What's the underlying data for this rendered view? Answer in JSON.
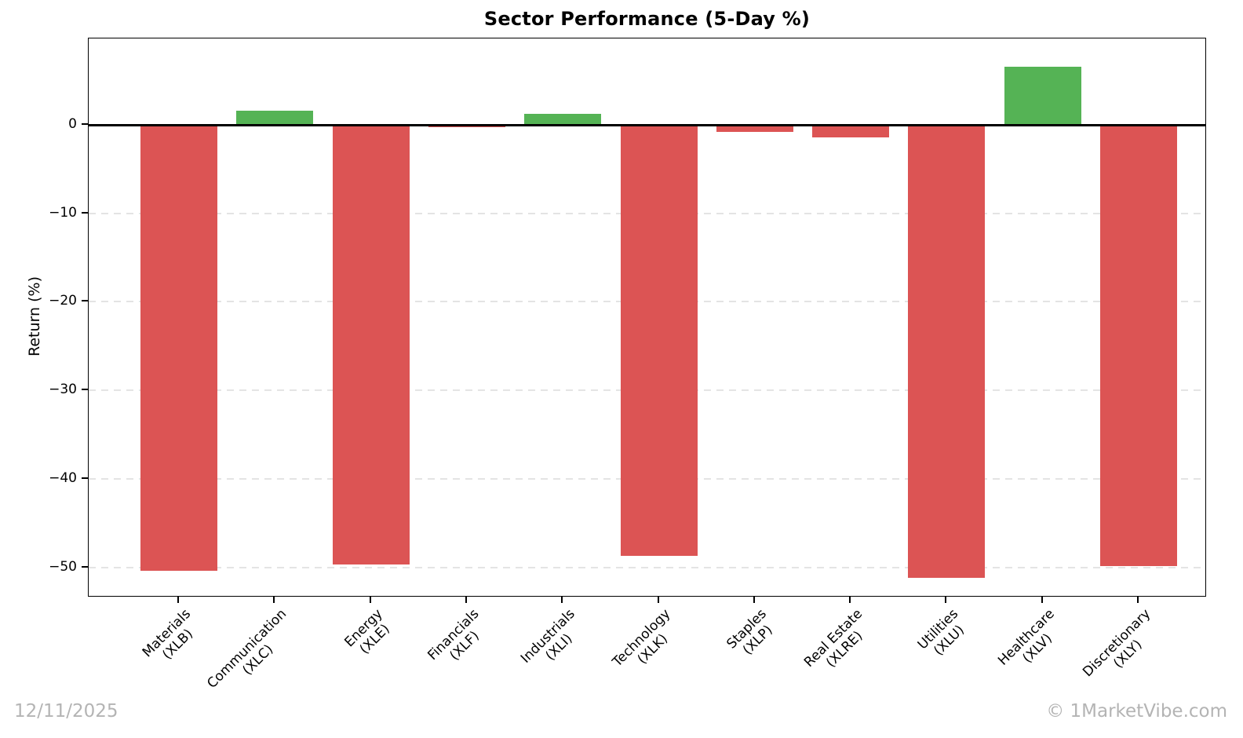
{
  "footer": {
    "date": "12/11/2025",
    "watermark": "© 1MarketVibe.com"
  },
  "colors": {
    "positive": "#55b355",
    "negative": "#dc5454",
    "grid": "#e4e4e4",
    "axis": "#000000",
    "stamp": "#b4b4b4"
  },
  "chart_data": {
    "type": "bar",
    "title": "Sector Performance (5-Day %)",
    "xlabel": "",
    "ylabel": "Return (%)",
    "categories": [
      {
        "label": "Materials",
        "ticker": "(XLB)"
      },
      {
        "label": "Communication",
        "ticker": "(XLC)"
      },
      {
        "label": "Energy",
        "ticker": "(XLE)"
      },
      {
        "label": "Financials",
        "ticker": "(XLF)"
      },
      {
        "label": "Industrials",
        "ticker": "(XLI)"
      },
      {
        "label": "Technology",
        "ticker": "(XLK)"
      },
      {
        "label": "Staples",
        "ticker": "(XLP)"
      },
      {
        "label": "Real Estate",
        "ticker": "(XLRE)"
      },
      {
        "label": "Utilities",
        "ticker": "(XLU)"
      },
      {
        "label": "Healthcare",
        "ticker": "(XLV)"
      },
      {
        "label": "Discretionary",
        "ticker": "(XLY)"
      }
    ],
    "values": [
      -50.4,
      1.6,
      -49.7,
      -0.3,
      1.2,
      -48.7,
      -0.8,
      -1.4,
      -51.2,
      6.6,
      -49.9
    ],
    "yticks": [
      0,
      -10,
      -20,
      -30,
      -40,
      -50
    ],
    "ylim": [
      -53.4,
      9.8
    ],
    "grid": "horizontal-dashed",
    "legend": "none",
    "bar_color_rule": "green if positive, red if negative"
  }
}
